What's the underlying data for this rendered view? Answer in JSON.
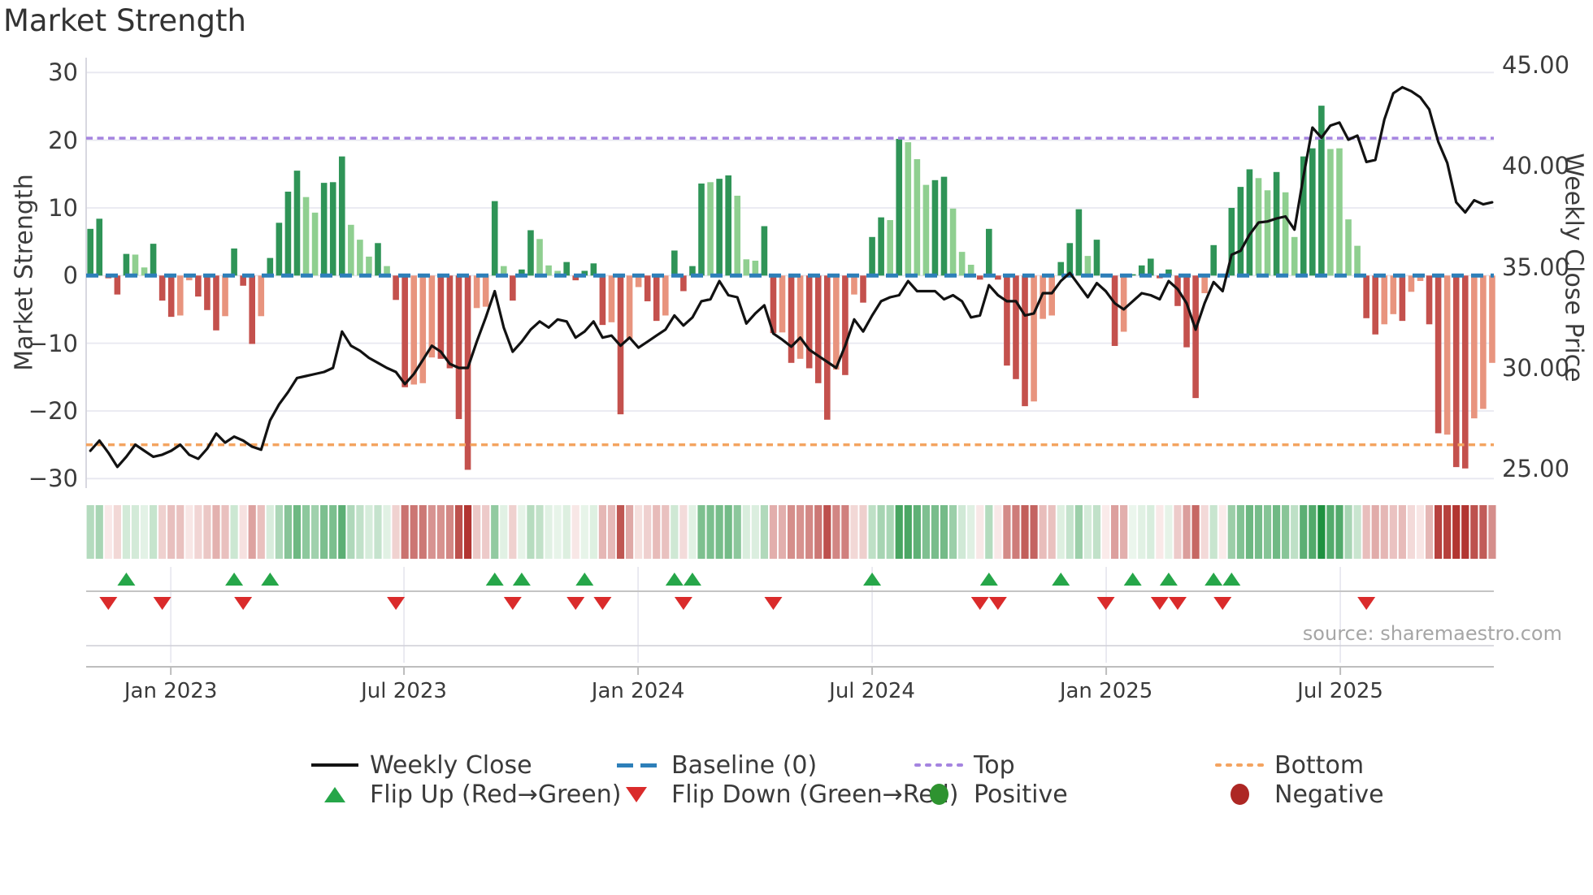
{
  "page": {
    "title": "Market Strength",
    "source_note": "source: sharemaestro.com"
  },
  "axes": {
    "left": {
      "label": "Market Strength",
      "ticks": [
        {
          "v": 30,
          "label": "30"
        },
        {
          "v": 20,
          "label": "20"
        },
        {
          "v": 10,
          "label": "10"
        },
        {
          "v": 0,
          "label": "0"
        },
        {
          "v": -10,
          "label": "−10"
        },
        {
          "v": -20,
          "label": "−20"
        },
        {
          "v": -30,
          "label": "−30"
        }
      ]
    },
    "right": {
      "label": "Weekly Close Price",
      "ticks": [
        {
          "v": 45,
          "label": "45.00"
        },
        {
          "v": 40,
          "label": "40.00"
        },
        {
          "v": 35,
          "label": "35.00"
        },
        {
          "v": 30,
          "label": "30.00"
        },
        {
          "v": 25,
          "label": "25.00"
        }
      ]
    },
    "x": {
      "ticks": [
        {
          "week": 8.95,
          "label": "Jan 2023"
        },
        {
          "week": 34.9,
          "label": "Jul 2023"
        },
        {
          "week": 60.95,
          "label": "Jan 2024"
        },
        {
          "week": 87.0,
          "label": "Jul 2024"
        },
        {
          "week": 113.05,
          "label": "Jan 2025"
        },
        {
          "week": 139.1,
          "label": "Jul 2025"
        }
      ]
    }
  },
  "legend": {
    "items": [
      {
        "id": "weekly-close",
        "label": "Weekly Close",
        "swatch": "line",
        "color": "#141414"
      },
      {
        "id": "baseline",
        "label": "Baseline (0)",
        "swatch": "dash",
        "color": "#2d7fb9"
      },
      {
        "id": "top",
        "label": "Top",
        "swatch": "dots",
        "color": "#a584e0"
      },
      {
        "id": "bottom",
        "label": "Bottom",
        "swatch": "dots",
        "color": "#f4a460"
      },
      {
        "id": "flip-up",
        "label": "Flip Up (Red→Green)",
        "swatch": "triangle-up",
        "color": "#26a649"
      },
      {
        "id": "flip-down",
        "label": "Flip Down (Green→Red)",
        "swatch": "triangle-down",
        "color": "#da2b2b"
      },
      {
        "id": "positive",
        "label": "Positive",
        "swatch": "circle",
        "color": "#2e9330"
      },
      {
        "id": "negative",
        "label": "Negative",
        "swatch": "circle",
        "color": "#ad2724"
      }
    ]
  },
  "colors": {
    "bar_pos_strong": "#2f9457",
    "bar_pos_soft": "#8fcf90",
    "bar_neg_strong": "#c4514d",
    "bar_neg_soft": "#e8947e",
    "weekly_close_line": "#121212",
    "baseline": "#2d7fb9",
    "top_line": "#a584e0",
    "bottom_line": "#f4a460",
    "flip_up": "#26a649",
    "flip_down": "#da2b2b",
    "heat_pos_max": "#1f9140",
    "heat_neg_max": "#b23531",
    "heat_pos_min": "#edf7ee",
    "heat_neg_min": "#faeceb",
    "grid": "#e8e8f0",
    "spine": "#d4d4dc",
    "marker_axis": "#c4c4c4",
    "date_axis": "#bdbdbd",
    "text_dark": "#3a3a3a",
    "text_gray": "#a6a6a6"
  },
  "chart_data": {
    "type": "combo",
    "title": "Market Strength",
    "x_unit": "week",
    "n_weeks": 157,
    "x_range_note": "weekly points from late Oct 2022 through late Oct 2025",
    "ylim_left": [
      -31.4,
      32.2
    ],
    "ylim_right": [
      24.05,
      45.36
    ],
    "grid": "horizontal only, at left-axis ticks",
    "legend_position": "bottom, two rows",
    "x_ticks": [
      {
        "week": 8.95,
        "label": "Jan 2023"
      },
      {
        "week": 34.9,
        "label": "Jul 2023"
      },
      {
        "week": 60.95,
        "label": "Jan 2024"
      },
      {
        "week": 87.0,
        "label": "Jul 2024"
      },
      {
        "week": 113.05,
        "label": "Jan 2025"
      },
      {
        "week": 139.1,
        "label": "Jul 2025"
      }
    ],
    "bar_series": {
      "name": "Market Strength",
      "axis": "left",
      "values": [
        6.9,
        8.4,
        -0.4,
        -2.8,
        3.2,
        3.1,
        1.2,
        4.7,
        -3.7,
        -6.1,
        -5.9,
        -0.7,
        -3.1,
        -5.1,
        -8.1,
        -6.0,
        4.0,
        -1.5,
        -10.1,
        -6.0,
        2.6,
        7.8,
        12.4,
        15.5,
        11.6,
        9.3,
        13.7,
        13.8,
        17.6,
        7.5,
        5.3,
        2.8,
        4.8,
        1.4,
        -3.6,
        -16.5,
        -16.1,
        -15.9,
        -12.1,
        -12.3,
        -13.7,
        -21.2,
        -28.7,
        -4.8,
        -4.6,
        11.0,
        1.4,
        -3.7,
        0.9,
        6.7,
        5.4,
        1.5,
        0.7,
        2.0,
        -0.7,
        0.7,
        1.8,
        -7.3,
        -6.9,
        -20.5,
        -9.3,
        -1.7,
        -3.8,
        -6.7,
        -5.9,
        3.7,
        -2.3,
        1.4,
        13.6,
        13.8,
        14.3,
        14.8,
        11.8,
        2.4,
        2.2,
        7.3,
        -8.5,
        -8.4,
        -12.9,
        -12.3,
        -13.7,
        -15.9,
        -21.3,
        -13.9,
        -14.7,
        -2.8,
        -4.0,
        5.7,
        8.6,
        8.2,
        20.2,
        19.7,
        17.2,
        13.4,
        14.1,
        14.6,
        9.9,
        3.5,
        1.6,
        -0.6,
        6.9,
        -0.6,
        -13.3,
        -15.3,
        -19.3,
        -18.6,
        -6.4,
        -5.9,
        2.0,
        4.8,
        9.8,
        2.9,
        5.3,
        -0.1,
        -10.4,
        -8.3,
        0.2,
        1.5,
        2.5,
        -0.4,
        0.9,
        -4.5,
        -10.6,
        -18.1,
        -2.6,
        4.5,
        -0.1,
        10.0,
        13.1,
        15.7,
        14.4,
        12.6,
        15.3,
        12.3,
        5.7,
        17.6,
        18.8,
        25.1,
        18.7,
        18.8,
        8.3,
        4.4,
        -6.3,
        -8.7,
        -7.2,
        -5.7,
        -6.7,
        -2.4,
        -0.8,
        -7.2,
        -23.3,
        -23.5,
        -28.3,
        -28.5,
        -21.1,
        -19.7,
        -12.9
      ],
      "shades": [
        "dg",
        "dg",
        "dr",
        "dr",
        "dg",
        "lg",
        "lg",
        "dg",
        "dr",
        "dr",
        "sr",
        "sr",
        "dr",
        "dr",
        "dr",
        "sr",
        "dg",
        "dr",
        "dr",
        "sr",
        "dg",
        "dg",
        "dg",
        "dg",
        "lg",
        "lg",
        "dg",
        "dg",
        "dg",
        "lg",
        "lg",
        "lg",
        "dg",
        "lg",
        "dr",
        "dr",
        "sr",
        "sr",
        "sr",
        "dr",
        "dr",
        "dr",
        "dr",
        "sr",
        "sr",
        "dg",
        "lg",
        "dr",
        "dg",
        "dg",
        "lg",
        "lg",
        "lg",
        "dg",
        "dr",
        "dg",
        "dg",
        "dr",
        "sr",
        "dr",
        "sr",
        "sr",
        "dr",
        "dr",
        "sr",
        "dg",
        "dr",
        "dg",
        "dg",
        "lg",
        "dg",
        "dg",
        "lg",
        "lg",
        "lg",
        "dg",
        "dr",
        "sr",
        "dr",
        "sr",
        "dr",
        "dr",
        "dr",
        "sr",
        "dr",
        "sr",
        "dr",
        "dg",
        "dg",
        "lg",
        "dg",
        "lg",
        "lg",
        "lg",
        "dg",
        "dg",
        "lg",
        "lg",
        "lg",
        "dr",
        "dg",
        "dr",
        "dr",
        "dr",
        "dr",
        "sr",
        "sr",
        "sr",
        "dg",
        "dg",
        "dg",
        "lg",
        "dg",
        "dr",
        "dr",
        "sr",
        "dg",
        "dg",
        "dg",
        "dr",
        "dg",
        "dr",
        "dr",
        "dr",
        "sr",
        "dg",
        "dr",
        "dg",
        "dg",
        "dg",
        "lg",
        "lg",
        "dg",
        "lg",
        "lg",
        "dg",
        "dg",
        "dg",
        "lg",
        "lg",
        "lg",
        "lg",
        "dr",
        "dr",
        "sr",
        "sr",
        "dr",
        "sr",
        "sr",
        "dr",
        "dr",
        "sr",
        "dr",
        "dr",
        "sr",
        "sr",
        "sr"
      ]
    },
    "line_series": {
      "name": "Weekly Close",
      "axis": "right",
      "values": [
        25.9,
        26.4,
        25.8,
        25.1,
        25.6,
        26.2,
        25.9,
        25.6,
        25.7,
        25.9,
        26.2,
        25.7,
        25.5,
        26.0,
        26.75,
        26.3,
        26.6,
        26.4,
        26.1,
        25.95,
        27.4,
        28.2,
        28.8,
        29.5,
        29.6,
        29.7,
        29.8,
        30.0,
        31.8,
        31.1,
        30.85,
        30.5,
        30.25,
        30.0,
        29.8,
        29.2,
        29.7,
        30.4,
        31.1,
        30.8,
        30.2,
        30.0,
        30.0,
        31.3,
        32.5,
        33.8,
        32.0,
        30.8,
        31.3,
        31.9,
        32.3,
        32.0,
        32.4,
        32.3,
        31.5,
        31.8,
        32.3,
        31.5,
        31.6,
        31.1,
        31.5,
        31.0,
        31.3,
        31.6,
        31.9,
        32.6,
        32.1,
        32.5,
        33.3,
        33.4,
        34.3,
        33.6,
        33.5,
        32.2,
        32.7,
        33.1,
        31.7,
        31.4,
        31.05,
        31.5,
        30.9,
        30.6,
        30.3,
        30.0,
        31.1,
        32.4,
        31.8,
        32.6,
        33.3,
        33.5,
        33.6,
        34.3,
        33.8,
        33.8,
        33.8,
        33.4,
        33.6,
        33.3,
        32.5,
        32.6,
        34.1,
        33.6,
        33.3,
        33.3,
        32.6,
        32.7,
        33.7,
        33.7,
        34.3,
        34.7,
        34.1,
        33.5,
        34.2,
        33.8,
        33.2,
        32.9,
        33.3,
        33.7,
        33.6,
        33.4,
        34.3,
        33.9,
        33.2,
        31.9,
        33.2,
        34.25,
        33.8,
        35.6,
        35.8,
        36.6,
        37.2,
        37.25,
        37.4,
        37.5,
        36.85,
        39.5,
        41.9,
        41.4,
        42.0,
        42.15,
        41.3,
        41.5,
        40.2,
        40.3,
        42.3,
        43.6,
        43.9,
        43.7,
        43.4,
        42.8,
        41.2,
        40.15,
        38.2,
        37.7,
        38.3,
        38.1,
        38.2
      ]
    },
    "reference_lines": [
      {
        "name": "Baseline (0)",
        "axis": "left",
        "value": 0,
        "style": "dashed",
        "color": "#2d7fb9"
      },
      {
        "name": "Top",
        "axis": "left",
        "value": 20.3,
        "style": "dotted",
        "color": "#a584e0"
      },
      {
        "name": "Bottom",
        "axis": "left",
        "value": -25.0,
        "style": "dotted",
        "color": "#f4a460"
      }
    ],
    "flip_up_weeks": [
      4,
      16,
      20,
      45,
      48,
      55,
      65,
      67,
      87,
      100,
      108,
      116,
      120,
      125,
      127
    ],
    "flip_down_weeks": [
      2,
      8,
      17,
      34,
      47,
      54,
      57,
      66,
      76,
      99,
      101,
      113,
      119,
      121,
      126,
      142
    ],
    "heatmap": {
      "desc": "weekly strength values repeated as a red/green gradient strip below the main panel",
      "source": "bar_series.values",
      "abs_max_for_color": 25
    }
  }
}
